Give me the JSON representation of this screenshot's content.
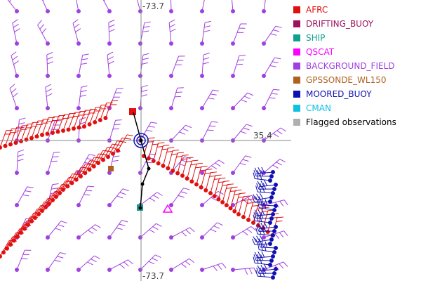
{
  "map": {
    "crosshair_labels": {
      "top_lon": "-73.7",
      "right_lat": "35.4",
      "bottom_lon": "-73.7"
    },
    "colors": {
      "background_field": "#a040e0",
      "afrc": "#e01010",
      "moored_buoy": "#1010b0",
      "qscat": "#ff00ff",
      "gpssonde": "#b06020",
      "ship": "#10a090",
      "track": "#000000",
      "crosshair": "#888888"
    }
  },
  "legend": {
    "items": [
      {
        "label": "AFRC",
        "color": "#e01010",
        "text_color": "#e01010"
      },
      {
        "label": "DRIFTING_BUOY",
        "color": "#a01060",
        "text_color": "#a01060"
      },
      {
        "label": "SHIP",
        "color": "#10a090",
        "text_color": "#10a090"
      },
      {
        "label": "QSCAT",
        "color": "#ff00ff",
        "text_color": "#ff00ff"
      },
      {
        "label": "BACKGROUND_FIELD",
        "color": "#a040e0",
        "text_color": "#a040e0"
      },
      {
        "label": "GPSSONDE_WL150",
        "color": "#b06020",
        "text_color": "#b06020"
      },
      {
        "label": "MOORED_BUOY",
        "color": "#1010b0",
        "text_color": "#1010b0"
      },
      {
        "label": "CMAN",
        "color": "#10c0e0",
        "text_color": "#10c0e0"
      },
      {
        "label": "Flagged observations",
        "color": "#b0b0b0",
        "text_color": "#000000"
      }
    ]
  }
}
